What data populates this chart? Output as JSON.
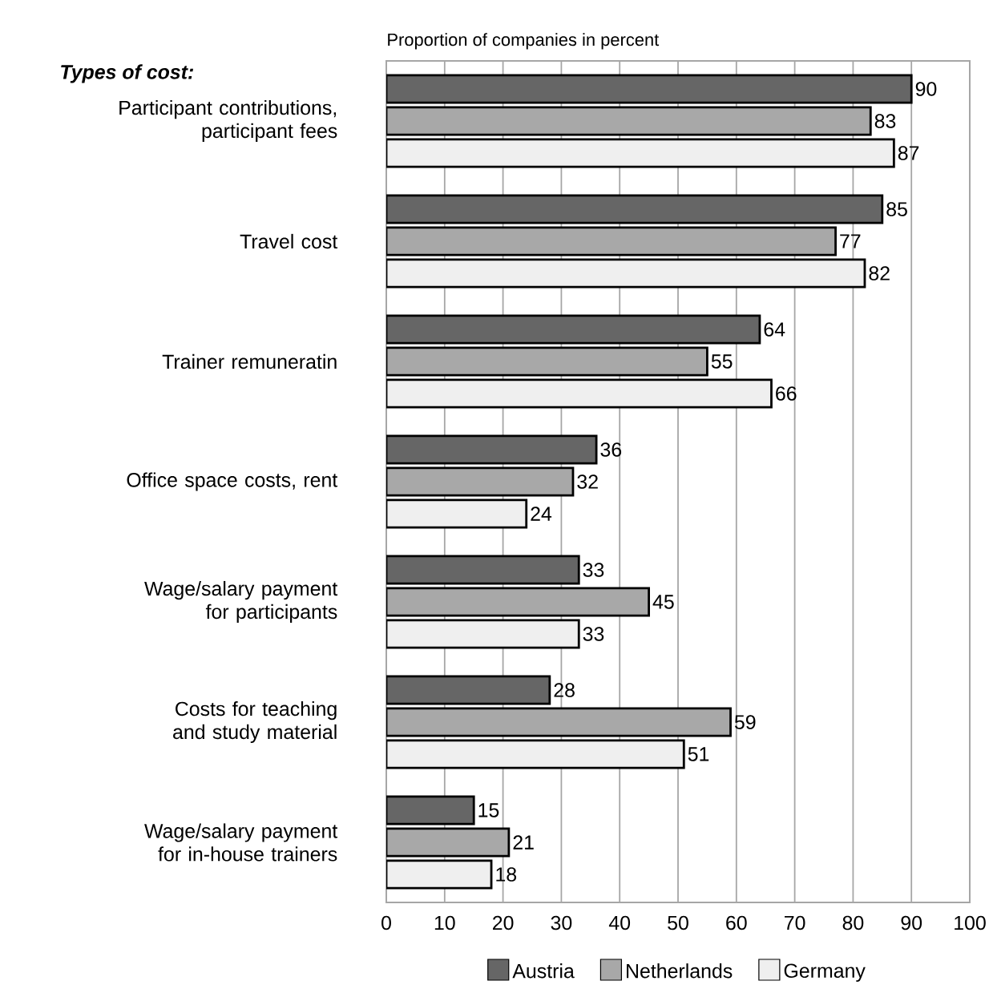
{
  "chart_data": {
    "type": "bar",
    "orientation": "horizontal",
    "title": "Types of cost:",
    "xlabel": "Proportion of companies in percent",
    "categories": [
      "Participant contributions, participant fees",
      "Travel cost",
      "Trainer remuneratin",
      "Office space costs, rent",
      "Wage/salary payment for participants",
      "Costs for teaching and study material",
      "Wage/salary payment for in-house trainers"
    ],
    "series": [
      {
        "name": "Austria",
        "color": "#666666",
        "values": [
          90,
          85,
          64,
          36,
          33,
          28,
          15
        ]
      },
      {
        "name": "Netherlands",
        "color": "#a8a8a8",
        "values": [
          83,
          77,
          55,
          32,
          45,
          59,
          21
        ]
      },
      {
        "name": "Germany",
        "color": "#efefef",
        "values": [
          87,
          82,
          66,
          24,
          33,
          51,
          18
        ]
      }
    ],
    "xlim": [
      0,
      100
    ],
    "xticks": [
      0,
      10,
      20,
      30,
      40,
      50,
      60,
      70,
      80,
      90,
      100
    ],
    "grid": "x",
    "legend": "bottom",
    "data_labels": true
  }
}
